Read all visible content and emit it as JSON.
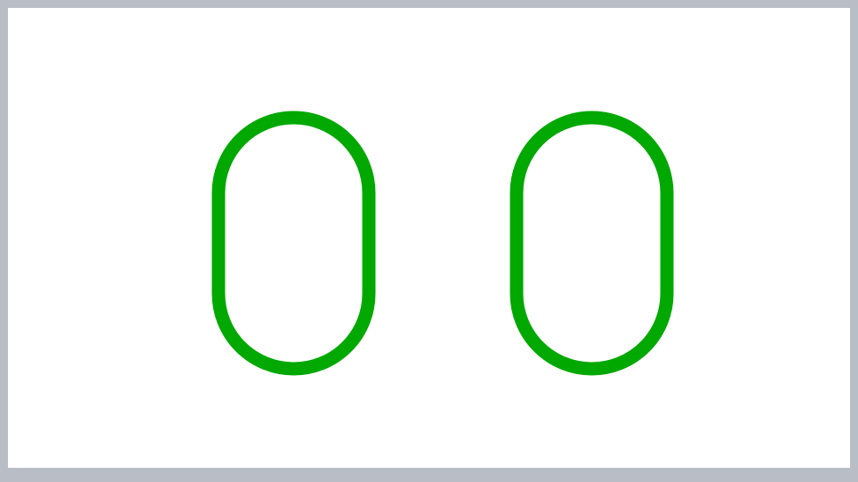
{
  "counter": {
    "value": "00",
    "digit_color": "#00a800",
    "frame_color": "#b9bec6",
    "background": "#ffffff"
  }
}
